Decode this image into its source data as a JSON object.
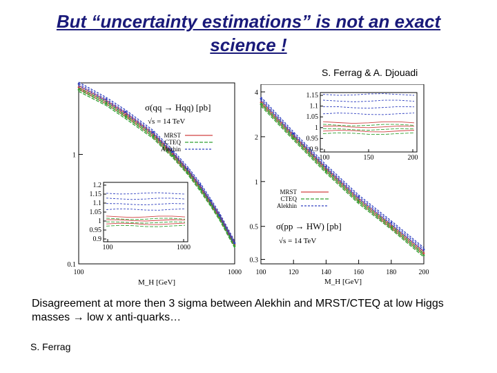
{
  "slide": {
    "title_line1": "But “uncertainty estimations” is not an exact",
    "title_line2": "science !",
    "authors": "S. Ferrag & A. Djouadi",
    "description_part1": "Disagreement at more then 3 sigma between Alekhin and MRST/CTEQ at low Higgs masses ",
    "description_arrow": "→",
    "description_part2": " low x anti-quarks…",
    "footer": "S. Ferrag",
    "title_color": "#1a1a7a"
  },
  "chart_data": [
    {
      "type": "line",
      "process_label": "σ(qq → Hqq) [pb]",
      "energy_label": "√s = 14 TeV",
      "xlabel": "M_H [GeV]",
      "xscale": "log",
      "xlim": [
        100,
        1000
      ],
      "x_ticks": [
        "100",
        "1000"
      ],
      "yscale": "log",
      "ylim": [
        0.1,
        4.5
      ],
      "y_ticks": [
        "1",
        "0.1"
      ],
      "x": [
        100,
        150,
        200,
        300,
        400,
        500,
        600,
        700,
        800,
        1000
      ],
      "series": [
        {
          "name": "MRST",
          "color": "#d04040",
          "values": [
            4.1,
            3.0,
            2.3,
            1.5,
            1.0,
            0.7,
            0.5,
            0.36,
            0.27,
            0.15
          ]
        },
        {
          "name": "CTEQ",
          "color": "#30a030",
          "values": [
            3.9,
            2.9,
            2.2,
            1.45,
            0.97,
            0.68,
            0.48,
            0.35,
            0.26,
            0.145
          ]
        },
        {
          "name": "Alekhin",
          "color": "#3040c0",
          "values": [
            4.4,
            3.2,
            2.45,
            1.6,
            1.06,
            0.74,
            0.53,
            0.38,
            0.28,
            0.155
          ]
        }
      ],
      "inset": {
        "x_ticks": [
          "100",
          "1000"
        ],
        "y_ticks": [
          "1.2",
          "1.15",
          "1.1",
          "1.05",
          "1",
          "0.95",
          "0.9"
        ]
      }
    },
    {
      "type": "line",
      "process_label": "σ(pp → HW) [pb]",
      "energy_label": "√s = 14 TeV",
      "xlabel": "M_H [GeV]",
      "xlim": [
        100,
        200
      ],
      "x_ticks": [
        "100",
        "120",
        "140",
        "160",
        "180",
        "200"
      ],
      "yscale": "log",
      "ylim": [
        0.28,
        4.5
      ],
      "y_ticks": [
        "4",
        "2",
        "1",
        "0.5",
        "0.3"
      ],
      "x": [
        100,
        120,
        140,
        160,
        180,
        200
      ],
      "series": [
        {
          "name": "MRST",
          "color": "#d04040",
          "values": [
            3.4,
            2.0,
            1.2,
            0.75,
            0.5,
            0.33
          ]
        },
        {
          "name": "CTEQ",
          "color": "#30a030",
          "values": [
            3.3,
            1.95,
            1.17,
            0.73,
            0.49,
            0.32
          ]
        },
        {
          "name": "Alekhin",
          "color": "#3040c0",
          "values": [
            3.6,
            2.1,
            1.26,
            0.79,
            0.53,
            0.35
          ]
        }
      ],
      "inset": {
        "x_ticks": [
          "100",
          "150",
          "200"
        ],
        "y_ticks": [
          "1.15",
          "1.1",
          "1.05",
          "1",
          "0.95",
          "0.9"
        ]
      }
    }
  ]
}
